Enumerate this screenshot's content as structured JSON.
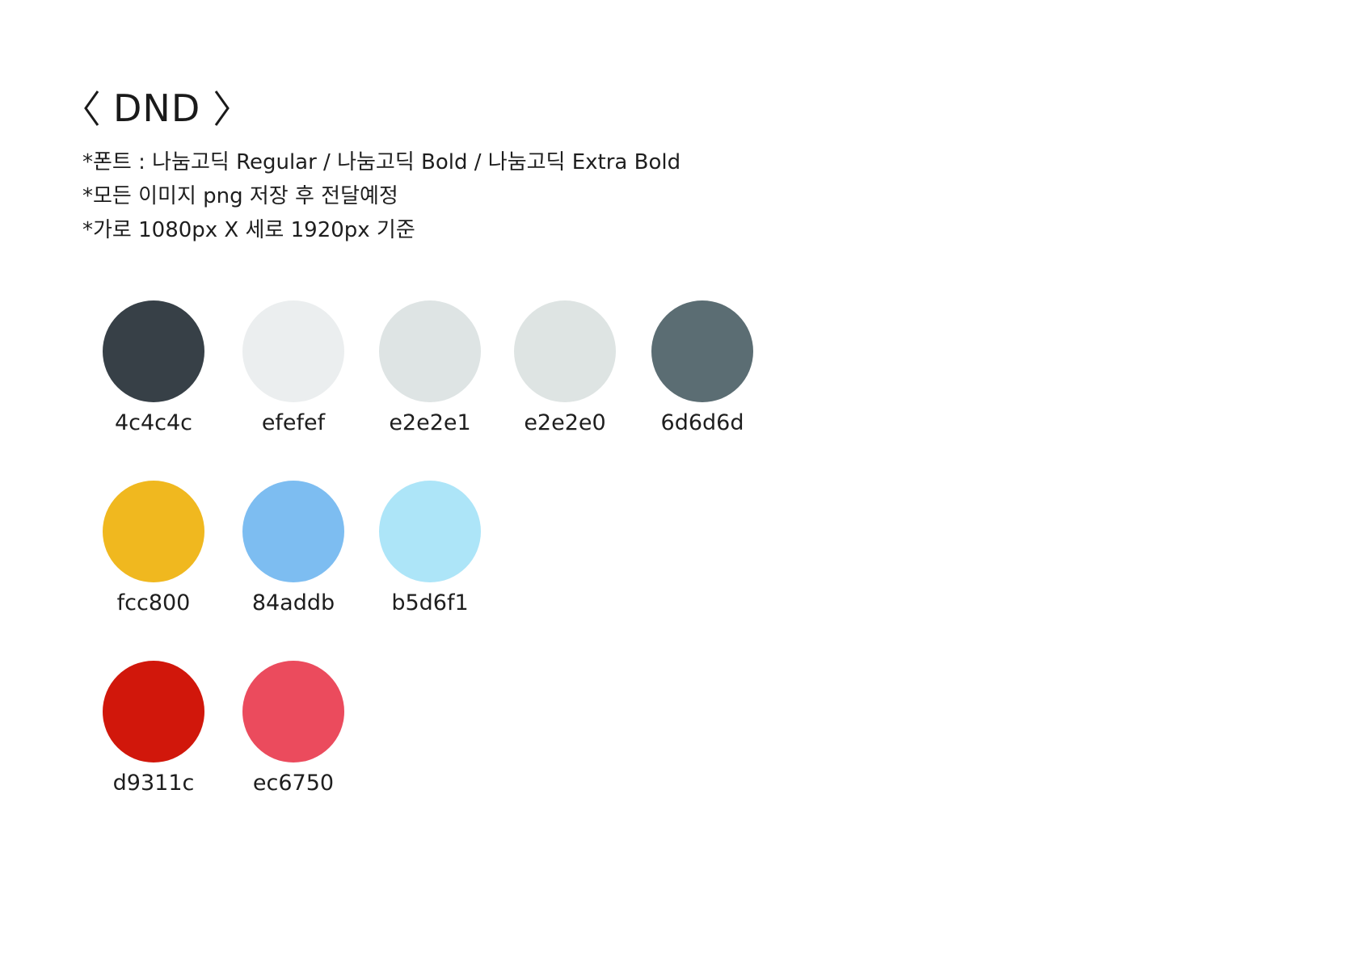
{
  "title": "DND",
  "notes": [
    "*폰트 : 나눔고딕 Regular / 나눔고딕 Bold / 나눔고딕 Extra Bold",
    "*모든 이미지 png 저장 후 전달예정",
    "*가로 1080px X 세로 1920px 기준"
  ],
  "swatches": [
    {
      "code": "4c4c4c",
      "color": "#374047"
    },
    {
      "code": "efefef",
      "color": "#ebeeef"
    },
    {
      "code": "e2e2e1",
      "color": "#dee4e4"
    },
    {
      "code": "e2e2e0",
      "color": "#dee4e3"
    },
    {
      "code": "6d6d6d",
      "color": "#5b6d73"
    },
    {
      "code": "fcc800",
      "color": "#f0b81f"
    },
    {
      "code": "84addb",
      "color": "#7dbdf1"
    },
    {
      "code": "b5d6f1",
      "color": "#ade5f8"
    },
    {
      "code": "d9311c",
      "color": "#d1170b"
    },
    {
      "code": "ec6750",
      "color": "#eb4b5d"
    }
  ]
}
